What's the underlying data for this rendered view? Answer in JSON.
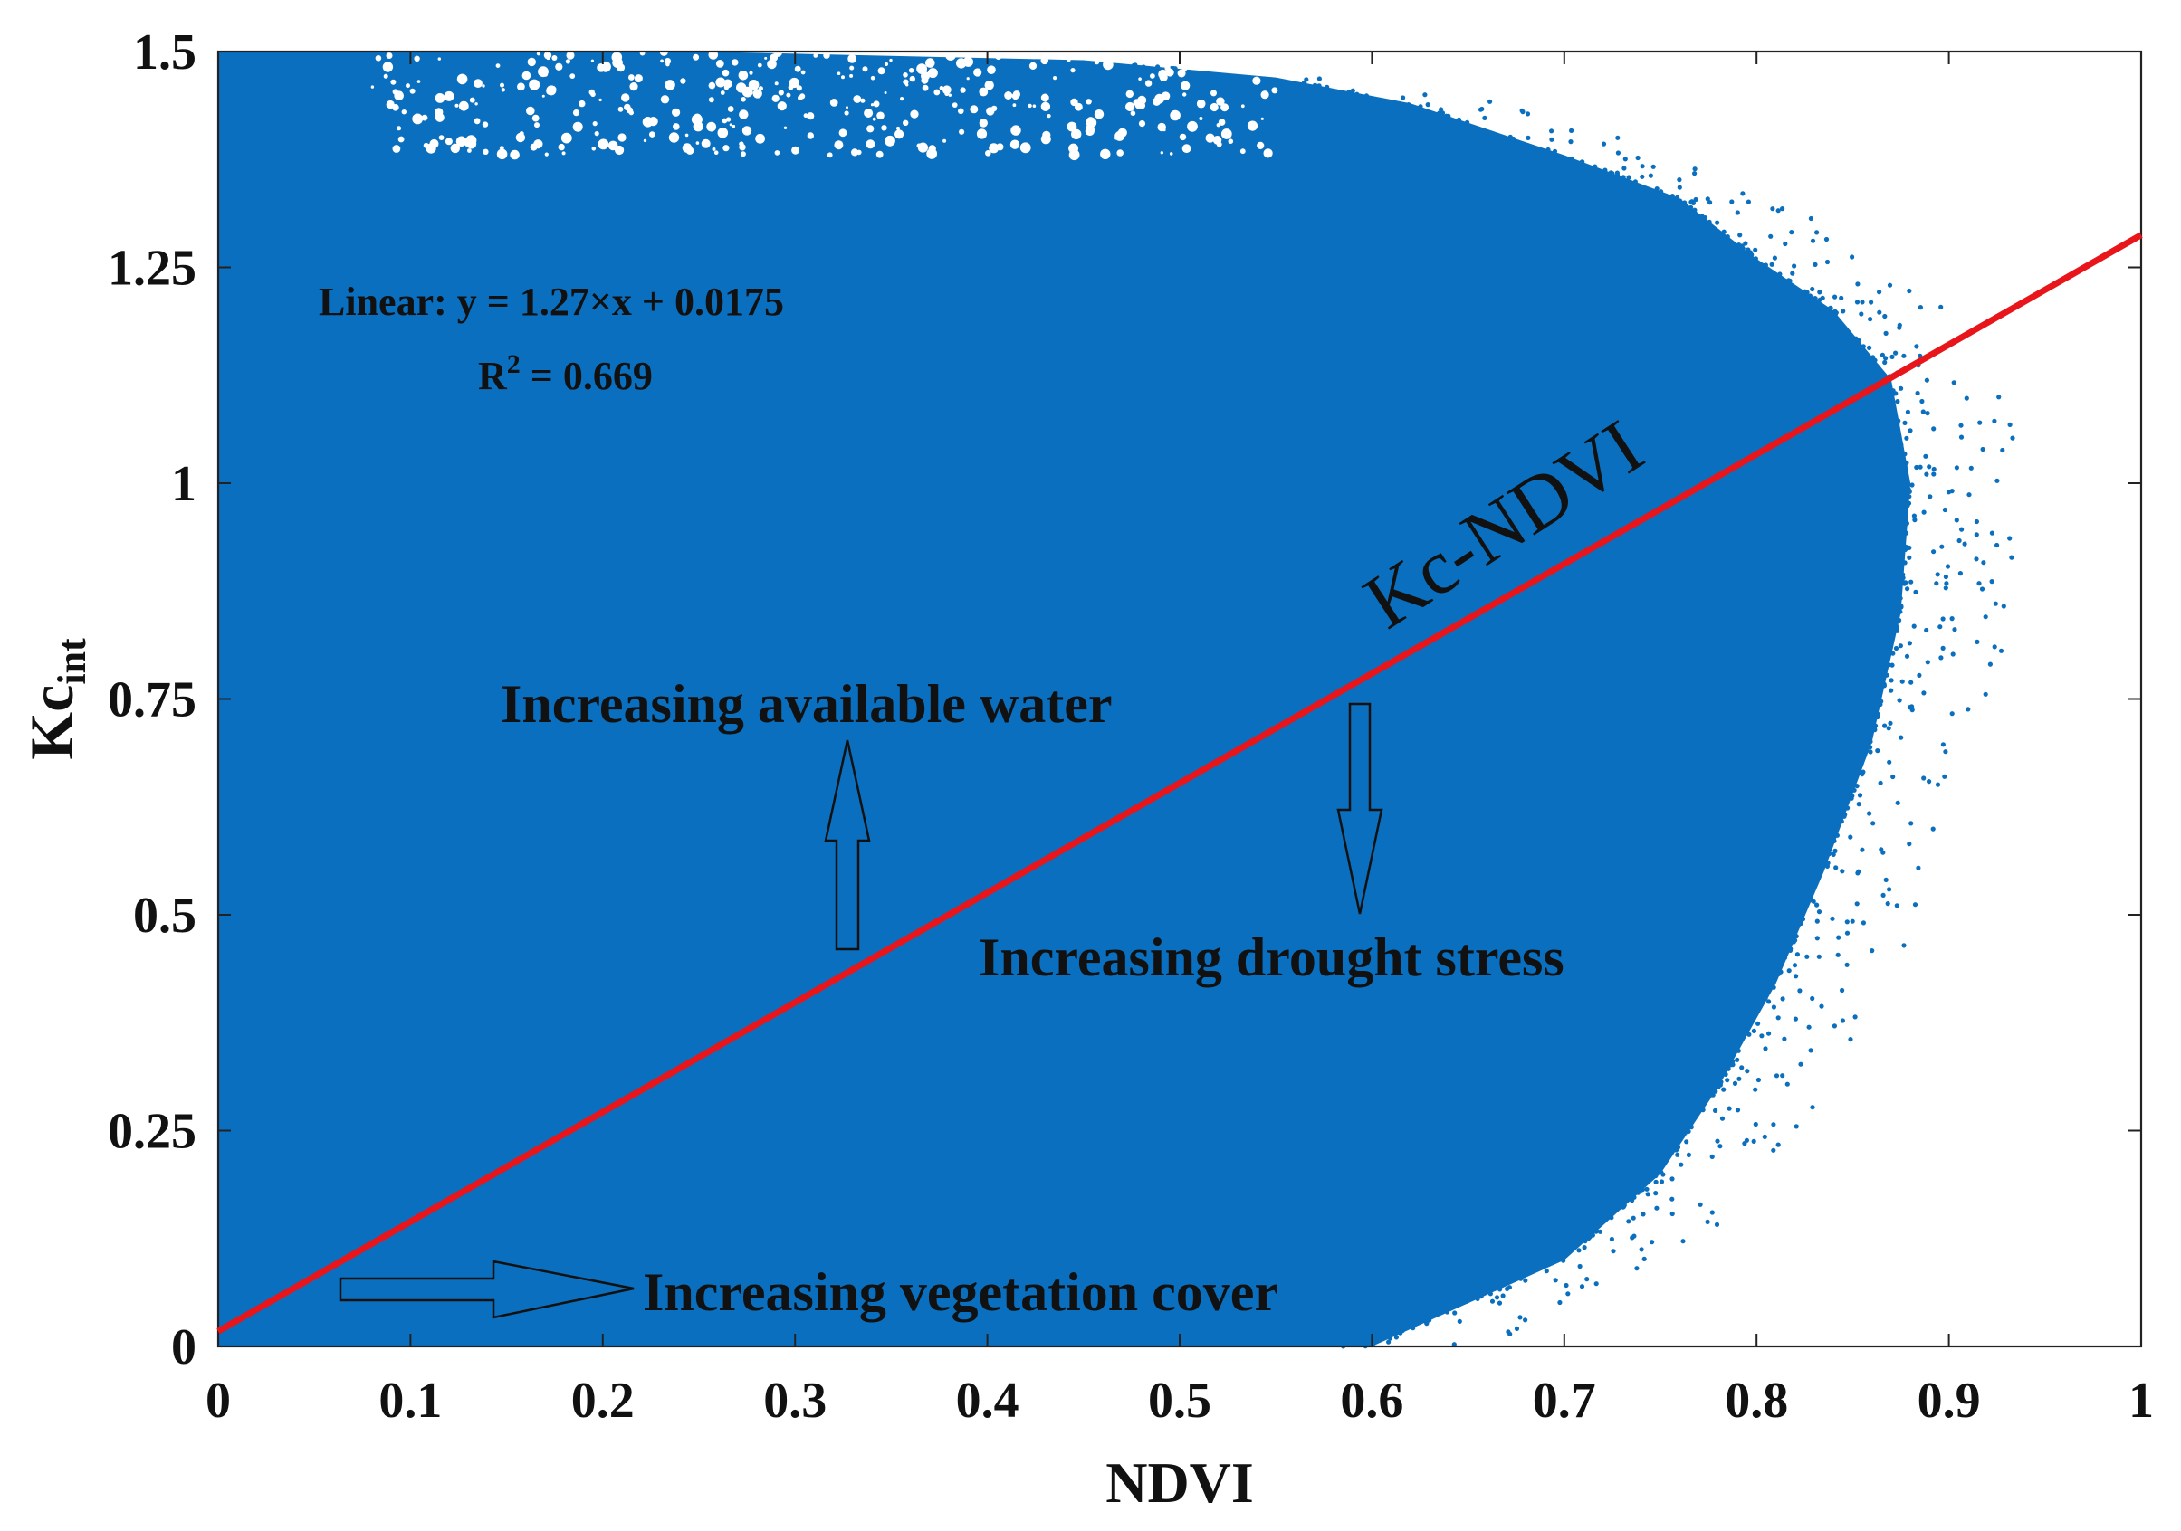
{
  "chart_data": {
    "type": "scatter",
    "title": "",
    "xlabel": "NDVI",
    "ylabel": "Kc",
    "ylabel_subscript": "int",
    "xlim": [
      0,
      1
    ],
    "ylim": [
      0,
      1.5
    ],
    "x_ticks": [
      "0",
      "0.1",
      "0.2",
      "0.3",
      "0.4",
      "0.5",
      "0.6",
      "0.7",
      "0.8",
      "0.9",
      "1"
    ],
    "x_tick_values": [
      0,
      0.1,
      0.2,
      0.3,
      0.4,
      0.5,
      0.6,
      0.7,
      0.8,
      0.9,
      1
    ],
    "y_ticks": [
      "0",
      "0.25",
      "0.5",
      "0.75",
      "1",
      "1.25",
      "1.5"
    ],
    "y_tick_values": [
      0,
      0.25,
      0.5,
      0.75,
      1,
      1.25,
      1.5
    ],
    "grid": false,
    "point_color": "#0a6fbe",
    "fit_color": "#e8151b",
    "cloud_envelope": {
      "right_edge": [
        [
          0.0,
          1.5
        ],
        [
          0.25,
          1.5
        ],
        [
          0.45,
          1.49
        ],
        [
          0.55,
          1.47
        ],
        [
          0.62,
          1.44
        ],
        [
          0.7,
          1.38
        ],
        [
          0.76,
          1.33
        ],
        [
          0.8,
          1.26
        ],
        [
          0.84,
          1.2
        ],
        [
          0.87,
          1.12
        ],
        [
          0.88,
          1.0
        ],
        [
          0.875,
          0.85
        ],
        [
          0.86,
          0.7
        ],
        [
          0.835,
          0.55
        ],
        [
          0.81,
          0.42
        ],
        [
          0.78,
          0.3
        ],
        [
          0.75,
          0.2
        ],
        [
          0.7,
          0.1
        ],
        [
          0.64,
          0.04
        ],
        [
          0.6,
          0.0
        ]
      ],
      "sparse_top_region": {
        "x": [
          0.08,
          0.55
        ],
        "y": [
          1.38,
          1.5
        ]
      }
    },
    "series": [
      {
        "values_description_free": true,
        "fit": {
          "slope": 1.27,
          "intercept": 0.0175
        }
      }
    ],
    "annotations": {
      "equation_line1": "Linear:  y = 1.27×x + 0.0175",
      "r2_prefix": "R",
      "r2_sup": "2",
      "r2_suffix": " = 0.669",
      "fit_label": "Kc-NDVI",
      "water_label": "Increasing available water",
      "drought_label": "Increasing drought stress",
      "vegetation_label": "Increasing vegetation cover"
    }
  }
}
